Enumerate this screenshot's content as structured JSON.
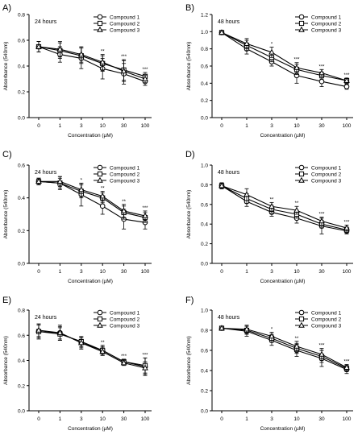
{
  "chart_data": [
    {
      "panel": "A)",
      "type": "line",
      "note": "24 hours",
      "x": [
        "0",
        "1",
        "3",
        "10",
        "30",
        "100"
      ],
      "ylabel": "Absorbance (540nm)",
      "xlabel": "Concentration (µM)",
      "ylim": [
        0,
        0.8
      ],
      "yticks": [
        "0.0",
        "0.2",
        "0.4",
        "0.6",
        "0.8"
      ],
      "series": [
        {
          "name": "Compound 1",
          "values": [
            0.55,
            0.49,
            0.46,
            0.38,
            0.34,
            0.28
          ],
          "err": [
            0.04,
            0.06,
            0.08,
            0.08,
            0.08,
            0.03
          ]
        },
        {
          "name": "Compound 2",
          "values": [
            0.55,
            0.52,
            0.48,
            0.42,
            0.37,
            0.32
          ],
          "err": [
            0.04,
            0.06,
            0.06,
            0.06,
            0.08,
            0.03
          ]
        },
        {
          "name": "Compound 3",
          "values": [
            0.55,
            0.53,
            0.49,
            0.43,
            0.36,
            0.3
          ],
          "err": [
            0.04,
            0.06,
            0.06,
            0.06,
            0.08,
            0.03
          ]
        }
      ],
      "annotations": [
        {
          "x": "10",
          "text": "**"
        },
        {
          "x": "30",
          "text": "***"
        },
        {
          "x": "100",
          "text": "***"
        }
      ]
    },
    {
      "panel": "B)",
      "type": "line",
      "note": "48 hours",
      "x": [
        "0",
        "1",
        "3",
        "10",
        "30",
        "100"
      ],
      "ylabel": "Absorbance (540nm)",
      "xlabel": "Concentration (µM)",
      "ylim": [
        0,
        1.2
      ],
      "yticks": [
        "0.0",
        "0.2",
        "0.4",
        "0.6",
        "0.8",
        "1.0",
        "1.2"
      ],
      "series": [
        {
          "name": "Compound 1",
          "values": [
            0.99,
            0.8,
            0.65,
            0.49,
            0.42,
            0.36
          ],
          "err": [
            0.02,
            0.06,
            0.05,
            0.09,
            0.06,
            0.03
          ]
        },
        {
          "name": "Compound 2",
          "values": [
            0.99,
            0.84,
            0.7,
            0.56,
            0.49,
            0.43
          ],
          "err": [
            0.02,
            0.06,
            0.05,
            0.06,
            0.04,
            0.03
          ]
        },
        {
          "name": "Compound 3",
          "values": [
            0.99,
            0.86,
            0.76,
            0.58,
            0.52,
            0.43
          ],
          "err": [
            0.02,
            0.06,
            0.06,
            0.06,
            0.04,
            0.03
          ]
        }
      ],
      "annotations": [
        {
          "x": "3",
          "text": "*"
        },
        {
          "x": "10",
          "text": "***"
        },
        {
          "x": "30",
          "text": "***"
        },
        {
          "x": "100",
          "text": "***"
        }
      ]
    },
    {
      "panel": "C)",
      "type": "line",
      "note": "24 hours",
      "x": [
        "0",
        "1",
        "3",
        "10",
        "30",
        "100"
      ],
      "ylabel": "Absorbance (540nm)",
      "xlabel": "Concentration (µM)",
      "ylim": [
        0,
        0.6
      ],
      "yticks": [
        "0.0",
        "0.2",
        "0.4",
        "0.6"
      ],
      "series": [
        {
          "name": "Compound 1",
          "values": [
            0.5,
            0.49,
            0.42,
            0.35,
            0.27,
            0.25
          ],
          "err": [
            0.02,
            0.04,
            0.07,
            0.05,
            0.06,
            0.04
          ]
        },
        {
          "name": "Compound 2",
          "values": [
            0.5,
            0.49,
            0.44,
            0.4,
            0.31,
            0.28
          ],
          "err": [
            0.02,
            0.03,
            0.04,
            0.03,
            0.04,
            0.03
          ]
        },
        {
          "name": "Compound 3",
          "values": [
            0.5,
            0.5,
            0.45,
            0.41,
            0.32,
            0.29
          ],
          "err": [
            0.02,
            0.03,
            0.04,
            0.03,
            0.04,
            0.03
          ]
        }
      ],
      "annotations": [
        {
          "x": "3",
          "text": "*"
        },
        {
          "x": "10",
          "text": "**"
        },
        {
          "x": "30",
          "text": "**"
        },
        {
          "x": "100",
          "text": "***"
        }
      ]
    },
    {
      "panel": "D)",
      "type": "line",
      "note": "48 hours",
      "x": [
        "0",
        "1",
        "3",
        "10",
        "30",
        "100"
      ],
      "ylabel": "Absorbance (540nm)",
      "xlabel": "Concentration (µM)",
      "ylim": [
        0,
        1.0
      ],
      "yticks": [
        "0.0",
        "0.2",
        "0.4",
        "0.6",
        "0.8",
        "1.0"
      ],
      "series": [
        {
          "name": "Compound 1",
          "values": [
            0.79,
            0.63,
            0.52,
            0.46,
            0.38,
            0.33
          ],
          "err": [
            0.03,
            0.05,
            0.04,
            0.05,
            0.08,
            0.03
          ]
        },
        {
          "name": "Compound 2",
          "values": [
            0.79,
            0.66,
            0.55,
            0.5,
            0.4,
            0.34
          ],
          "err": [
            0.03,
            0.05,
            0.04,
            0.04,
            0.04,
            0.03
          ]
        },
        {
          "name": "Compound 3",
          "values": [
            0.79,
            0.7,
            0.58,
            0.54,
            0.43,
            0.36
          ],
          "err": [
            0.03,
            0.06,
            0.04,
            0.04,
            0.04,
            0.03
          ]
        }
      ],
      "annotations": [
        {
          "x": "3",
          "text": "**"
        },
        {
          "x": "10",
          "text": "**"
        },
        {
          "x": "30",
          "text": "***"
        },
        {
          "x": "100",
          "text": "***"
        }
      ]
    },
    {
      "panel": "E)",
      "type": "line",
      "note": "24 hours",
      "x": [
        "0",
        "1",
        "3",
        "10",
        "30",
        "100"
      ],
      "ylabel": "Absorbance (540nm)",
      "xlabel": "Concentration (µM)",
      "ylim": [
        0,
        0.8
      ],
      "yticks": [
        "0.0",
        "0.2",
        "0.4",
        "0.6",
        "0.8"
      ],
      "series": [
        {
          "name": "Compound 1",
          "values": [
            0.63,
            0.62,
            0.54,
            0.48,
            0.39,
            0.35
          ],
          "err": [
            0.06,
            0.06,
            0.05,
            0.04,
            0.02,
            0.07
          ]
        },
        {
          "name": "Compound 2",
          "values": [
            0.63,
            0.61,
            0.55,
            0.48,
            0.39,
            0.36
          ],
          "err": [
            0.05,
            0.05,
            0.04,
            0.03,
            0.02,
            0.06
          ]
        },
        {
          "name": "Compound 3",
          "values": [
            0.64,
            0.62,
            0.54,
            0.47,
            0.38,
            0.34
          ],
          "err": [
            0.05,
            0.05,
            0.04,
            0.03,
            0.02,
            0.05
          ]
        }
      ],
      "annotations": [
        {
          "x": "10",
          "text": "**"
        },
        {
          "x": "30",
          "text": "***"
        },
        {
          "x": "100",
          "text": "***"
        }
      ]
    },
    {
      "panel": "F)",
      "type": "line",
      "note": "48 hours",
      "x": [
        "0",
        "1",
        "3",
        "10",
        "30",
        "100"
      ],
      "ylabel": "Absorbance (540nm)",
      "xlabel": "Concentration (µM)",
      "ylim": [
        0,
        1.0
      ],
      "yticks": [
        "0.0",
        "0.2",
        "0.4",
        "0.6",
        "0.8",
        "1.0"
      ],
      "series": [
        {
          "name": "Compound 1",
          "values": [
            0.82,
            0.79,
            0.7,
            0.6,
            0.52,
            0.41
          ],
          "err": [
            0.02,
            0.05,
            0.05,
            0.06,
            0.08,
            0.04
          ]
        },
        {
          "name": "Compound 2",
          "values": [
            0.82,
            0.8,
            0.72,
            0.62,
            0.54,
            0.42
          ],
          "err": [
            0.02,
            0.04,
            0.04,
            0.05,
            0.06,
            0.03
          ]
        },
        {
          "name": "Compound 3",
          "values": [
            0.82,
            0.81,
            0.74,
            0.64,
            0.56,
            0.43
          ],
          "err": [
            0.02,
            0.04,
            0.04,
            0.05,
            0.06,
            0.03
          ]
        }
      ],
      "annotations": [
        {
          "x": "3",
          "text": "*"
        },
        {
          "x": "10",
          "text": "**"
        },
        {
          "x": "30",
          "text": "***"
        },
        {
          "x": "100",
          "text": "***"
        }
      ]
    }
  ]
}
